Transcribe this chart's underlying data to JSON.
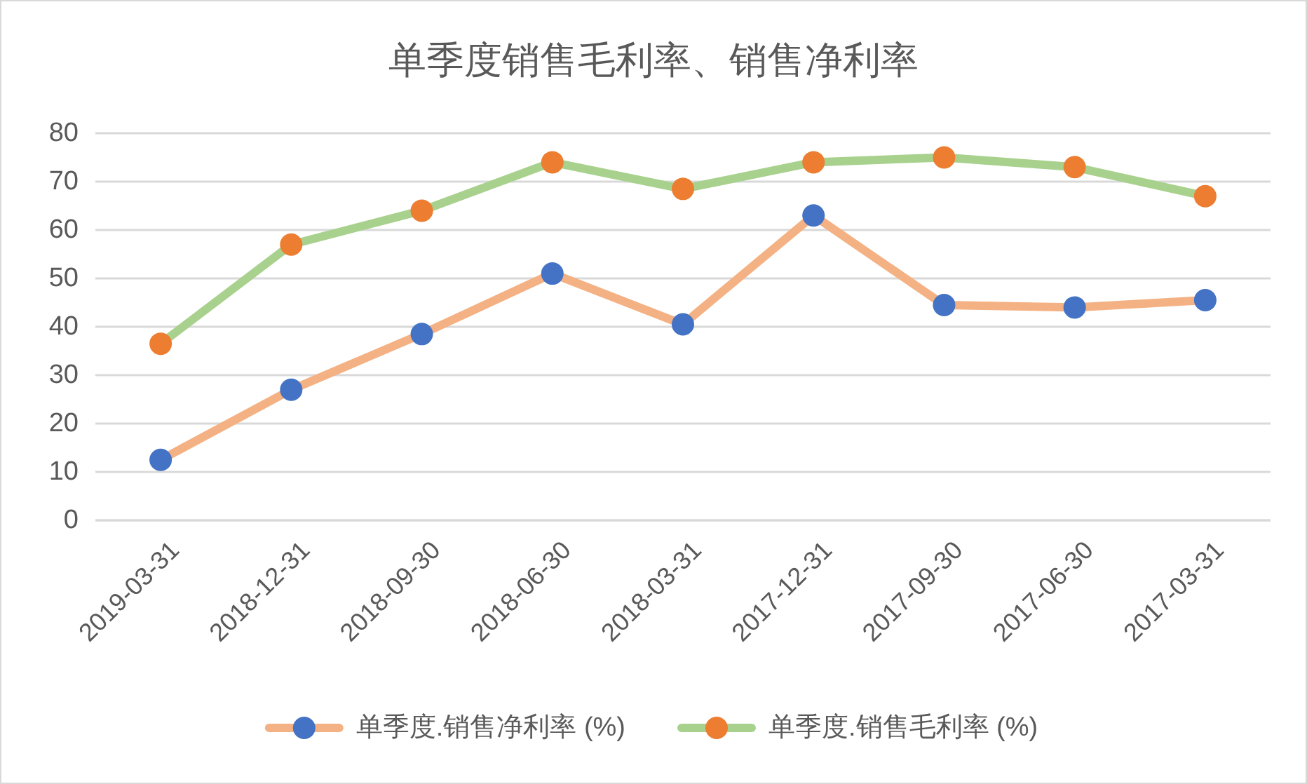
{
  "chart_data": {
    "type": "line",
    "title": "单季度销售毛利率、销售净利率",
    "categories": [
      "2019-03-31",
      "2018-12-31",
      "2018-09-30",
      "2018-06-30",
      "2018-03-31",
      "2017-12-31",
      "2017-09-30",
      "2017-06-30",
      "2017-03-31"
    ],
    "series": [
      {
        "name": "单季度.销售净利率 (%)",
        "color": "#f4b183",
        "colors": [
          "#4472c4",
          "#4472c4",
          "#4472c4",
          "#4472c4",
          "#4472c4",
          "#4472c4",
          "#4472c4",
          "#4472c4",
          "#4472c4"
        ],
        "values": [
          12.5,
          27,
          38.5,
          51,
          40.5,
          63,
          44.5,
          44,
          45.5
        ]
      },
      {
        "name": "单季度.销售毛利率 (%)",
        "color": "#a9d18e",
        "colors": [
          "#ed7d31",
          "#ed7d31",
          "#ed7d31",
          "#ed7d31",
          "#ed7d31",
          "#ed7d31",
          "#ed7d31",
          "#ed7d31",
          "#ed7d31"
        ],
        "values": [
          36.5,
          57,
          64,
          74,
          68.5,
          74,
          75,
          73,
          67
        ]
      }
    ],
    "ylim": [
      0,
      80
    ],
    "yticks": [
      0,
      10,
      20,
      30,
      40,
      50,
      60,
      70,
      80
    ],
    "grid": "y",
    "legend": "bottom",
    "marker": "circle"
  }
}
